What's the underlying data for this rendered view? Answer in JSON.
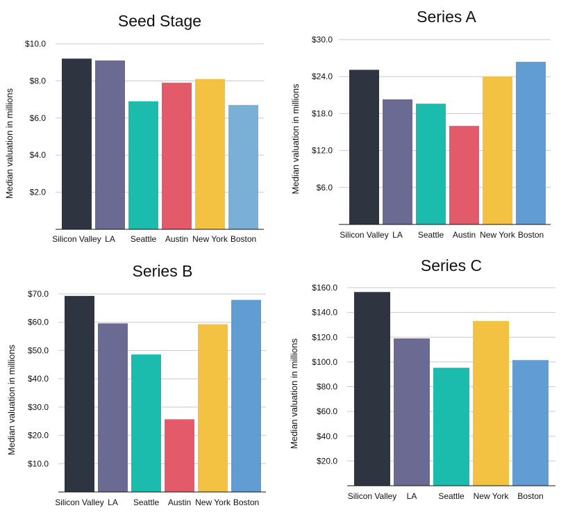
{
  "chart_data": [
    {
      "type": "bar",
      "title": "Seed Stage",
      "ylabel": "Median valuation in millions",
      "xlabel": "",
      "categories": [
        "Silicon Valley",
        "LA",
        "Seattle",
        "Austin",
        "New York",
        "Boston"
      ],
      "values": [
        9.2,
        9.1,
        6.9,
        7.9,
        8.1,
        6.7
      ],
      "colors": [
        "#2e3440",
        "#6a6a93",
        "#1bbcae",
        "#e35a6a",
        "#f3c242",
        "#7aafd6"
      ],
      "ylim": [
        0,
        10
      ],
      "yticks": [
        2,
        4,
        6,
        8,
        10
      ],
      "ytick_labels": [
        "$2.0",
        "$4.0",
        "$6.0",
        "$8.0",
        "$10.0"
      ],
      "grid": true
    },
    {
      "type": "bar",
      "title": "Series A",
      "ylabel": "Median valuation in millions",
      "xlabel": "",
      "categories": [
        "Silicon Valley",
        "LA",
        "Seattle",
        "Austin",
        "New York",
        "Boston"
      ],
      "values": [
        25.1,
        20.3,
        19.6,
        16.0,
        24.0,
        26.4
      ],
      "colors": [
        "#2e3440",
        "#6a6a93",
        "#1bbcae",
        "#e35a6a",
        "#f3c242",
        "#619cd3"
      ],
      "ylim": [
        0,
        30
      ],
      "yticks": [
        6,
        12,
        18,
        24,
        30
      ],
      "ytick_labels": [
        "$6.0",
        "$12.0",
        "$18.0",
        "$24.0",
        "$30.0"
      ],
      "grid": true
    },
    {
      "type": "bar",
      "title": "Series B",
      "ylabel": "Median valuation in millions",
      "xlabel": "",
      "categories": [
        "Silicon Valley",
        "LA",
        "Seattle",
        "Austin",
        "New York",
        "Boston"
      ],
      "values": [
        69.3,
        59.6,
        48.6,
        25.7,
        59.3,
        67.9
      ],
      "colors": [
        "#2e3440",
        "#6a6a93",
        "#1bbcae",
        "#e35a6a",
        "#f3c242",
        "#619cd3"
      ],
      "ylim": [
        0,
        70
      ],
      "yticks": [
        10,
        20,
        30,
        40,
        50,
        60,
        70
      ],
      "ytick_labels": [
        "$10.0",
        "$20.0",
        "$30.0",
        "$40.0",
        "$50.0",
        "$60.0",
        "$70.0"
      ],
      "grid": true
    },
    {
      "type": "bar",
      "title": "Series C",
      "ylabel": "Median valuation in millions",
      "xlabel": "",
      "categories": [
        "Silicon Valley",
        "LA",
        "Seattle",
        "New York",
        "Boston"
      ],
      "values": [
        156.5,
        119.0,
        95.3,
        133.0,
        101.5
      ],
      "colors": [
        "#2e3440",
        "#6a6a93",
        "#1bbcae",
        "#f3c242",
        "#619cd3"
      ],
      "ylim": [
        0,
        160
      ],
      "yticks": [
        20,
        40,
        60,
        80,
        100,
        120,
        140,
        160
      ],
      "ytick_labels": [
        "$20.0",
        "$40.0",
        "$60.0",
        "$80.0",
        "$100.0",
        "$120.0",
        "$140.0",
        "$160.0"
      ],
      "grid": true
    }
  ]
}
